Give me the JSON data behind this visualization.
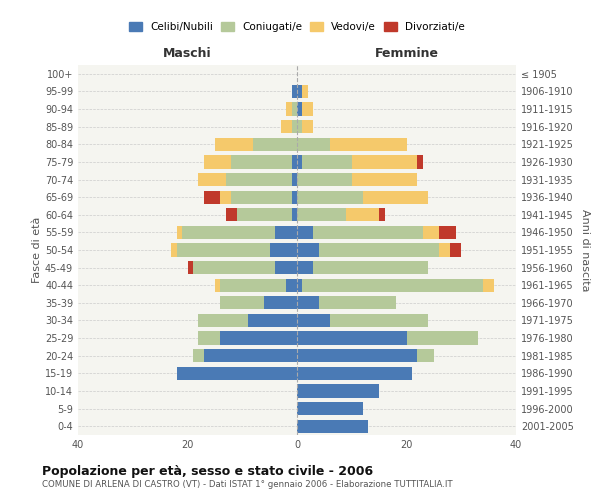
{
  "age_groups": [
    "0-4",
    "5-9",
    "10-14",
    "15-19",
    "20-24",
    "25-29",
    "30-34",
    "35-39",
    "40-44",
    "45-49",
    "50-54",
    "55-59",
    "60-64",
    "65-69",
    "70-74",
    "75-79",
    "80-84",
    "85-89",
    "90-94",
    "95-99",
    "100+"
  ],
  "birth_years": [
    "2001-2005",
    "1996-2000",
    "1991-1995",
    "1986-1990",
    "1981-1985",
    "1976-1980",
    "1971-1975",
    "1966-1970",
    "1961-1965",
    "1956-1960",
    "1951-1955",
    "1946-1950",
    "1941-1945",
    "1936-1940",
    "1931-1935",
    "1926-1930",
    "1921-1925",
    "1916-1920",
    "1911-1915",
    "1906-1910",
    "≤ 1905"
  ],
  "maschi": {
    "celibi": [
      0,
      0,
      0,
      22,
      17,
      14,
      9,
      6,
      2,
      4,
      5,
      4,
      1,
      1,
      1,
      1,
      0,
      0,
      0,
      1,
      0
    ],
    "coniugati": [
      0,
      0,
      0,
      0,
      2,
      4,
      9,
      8,
      12,
      15,
      17,
      17,
      10,
      11,
      12,
      11,
      8,
      1,
      1,
      0,
      0
    ],
    "vedovi": [
      0,
      0,
      0,
      0,
      0,
      0,
      0,
      0,
      1,
      0,
      1,
      1,
      0,
      2,
      5,
      5,
      7,
      2,
      1,
      0,
      0
    ],
    "divorziati": [
      0,
      0,
      0,
      0,
      0,
      0,
      0,
      0,
      0,
      1,
      0,
      0,
      2,
      3,
      0,
      0,
      0,
      0,
      0,
      0,
      0
    ]
  },
  "femmine": {
    "nubili": [
      13,
      12,
      15,
      21,
      22,
      20,
      6,
      4,
      1,
      3,
      4,
      3,
      0,
      0,
      0,
      1,
      0,
      0,
      1,
      1,
      0
    ],
    "coniugate": [
      0,
      0,
      0,
      0,
      3,
      13,
      18,
      14,
      33,
      21,
      22,
      20,
      9,
      12,
      10,
      9,
      6,
      1,
      0,
      0,
      0
    ],
    "vedove": [
      0,
      0,
      0,
      0,
      0,
      0,
      0,
      0,
      2,
      0,
      2,
      3,
      6,
      12,
      12,
      12,
      14,
      2,
      2,
      1,
      0
    ],
    "divorziate": [
      0,
      0,
      0,
      0,
      0,
      0,
      0,
      0,
      0,
      0,
      2,
      3,
      1,
      0,
      0,
      1,
      0,
      0,
      0,
      0,
      0
    ]
  },
  "colors": {
    "celibi_nubili": "#4a7ab5",
    "coniugati": "#b5c99a",
    "vedovi": "#f5c96b",
    "divorziati": "#c0392b"
  },
  "title": "Popolazione per età, sesso e stato civile - 2006",
  "subtitle": "COMUNE DI ARLENA DI CASTRO (VT) - Dati ISTAT 1° gennaio 2006 - Elaborazione TUTTITALIA.IT",
  "xlim": 40,
  "xlabel_left": "Maschi",
  "xlabel_right": "Femmine",
  "ylabel_left": "Fasce di età",
  "ylabel_right": "Anni di nascita",
  "legend_labels": [
    "Celibi/Nubili",
    "Coniugati/e",
    "Vedovi/e",
    "Divorziati/e"
  ]
}
